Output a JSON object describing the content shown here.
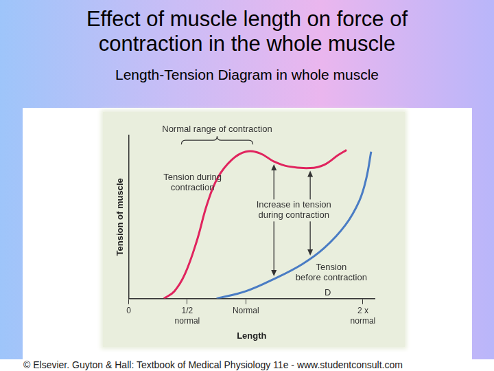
{
  "chart_data": {
    "type": "line",
    "title": "Effect of muscle length on force of contraction in the whole muscle",
    "subtitle": "Length-Tension Diagram in whole muscle",
    "x_label": "Length",
    "y_label": "Tension of muscle",
    "footer": "© Elsevier. Guyton & Hall: Textbook of Medical Physiology 11e - www.studentconsult.com",
    "series": [
      {
        "name": "Tension during contraction",
        "color": "#e0245e",
        "x": [
          0.3,
          0.39,
          0.48,
          0.58,
          0.67,
          0.76,
          0.88,
          1.0,
          1.12,
          1.24,
          1.36,
          1.55,
          1.67,
          1.79,
          1.86
        ],
        "values": [
          0,
          4.5,
          15,
          35,
          58,
          74,
          85,
          90,
          89,
          84,
          81,
          80,
          82,
          88,
          91
        ]
      },
      {
        "name": "Tension before contraction",
        "color": "#4a7cc4",
        "x": [
          0.75,
          1.0,
          1.24,
          1.48,
          1.67,
          1.85,
          1.97,
          2.03,
          2.07
        ],
        "values": [
          0,
          4.5,
          12,
          21,
          31,
          45,
          60,
          74,
          90
        ]
      }
    ],
    "xlim": [
      0,
      2.1
    ],
    "xticks": [
      0,
      {
        "value": 0.5,
        "label": "1/2 normal"
      },
      {
        "value": 1,
        "label": "Normal"
      },
      {
        "value": 2,
        "label": "2 x normal"
      }
    ],
    "ylim": [
      0,
      100
    ],
    "tick_labels": "x",
    "grid": false,
    "annotations": [
      "Normal range of contraction",
      "Increase in tension during contraction",
      "D"
    ]
  }
}
